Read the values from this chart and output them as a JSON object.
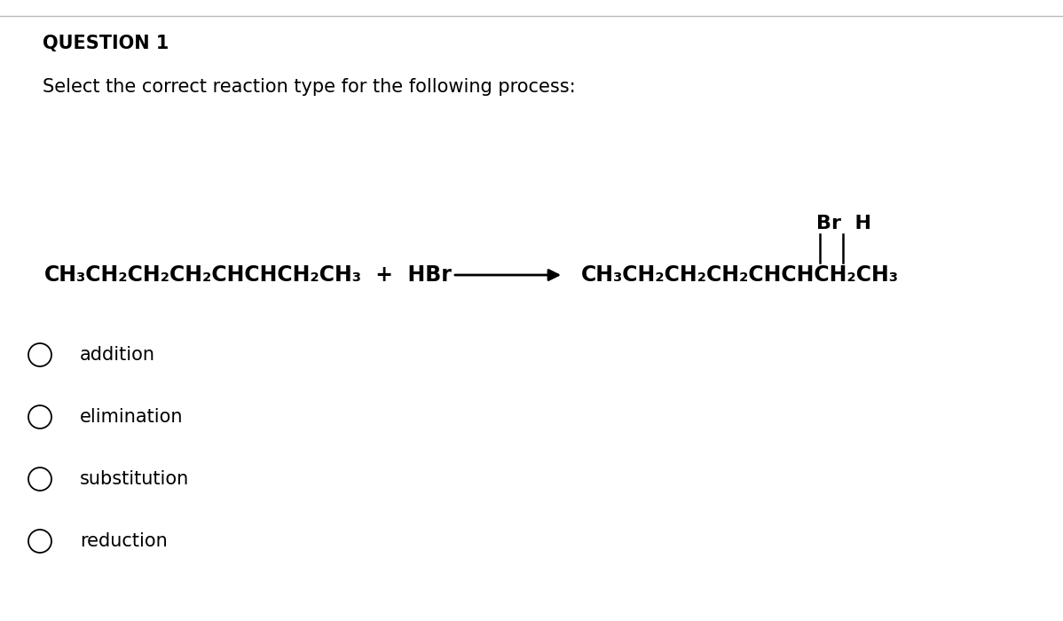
{
  "background_color": "#ffffff",
  "border_color": "#bbbbbb",
  "question_label": "QUESTION 1",
  "question_label_fontsize": 15,
  "subtitle": "Select the correct reaction type for the following process:",
  "subtitle_fontsize": 15,
  "reactant": "CH₃CH₂CH₂CH₂CHCHCH₂CH₃",
  "reagent": " +  HBr",
  "product": "CH₃CH₂CH₂CH₂CHCHCH₂CH₃",
  "br_h_label": "Br  H",
  "chem_fontsize": 17,
  "options": [
    "addition",
    "elimination",
    "substitution",
    "reduction"
  ],
  "options_fontsize": 15,
  "text_color": "#000000"
}
